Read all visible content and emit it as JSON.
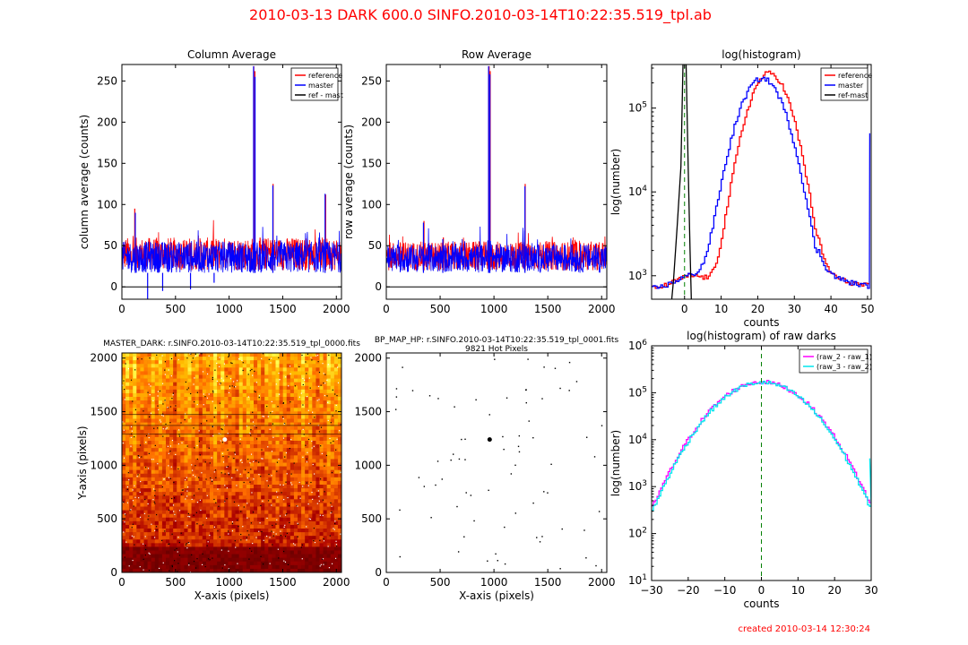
{
  "suptitle": "2010-03-13   DARK   600.0   SINFO.2010-03-14T10:22:35.519_tpl.ab",
  "footer": "created   2010-03-14    12:30:24",
  "colors": {
    "reference": "#ff0000",
    "master": "#0000ff",
    "ref_mast": "#000000",
    "magenta": "#ff00ff",
    "cyan": "#00e5ee",
    "green_dash": "#008000"
  },
  "chart_data": [
    {
      "id": "col_avg",
      "type": "line",
      "title": "Column Average",
      "xlabel": "",
      "ylabel": "column average (counts)",
      "xlim": [
        0,
        2048
      ],
      "ylim": [
        -15,
        270
      ],
      "xticks": [
        0,
        500,
        1000,
        1500,
        2000
      ],
      "yticks": [
        0,
        50,
        100,
        150,
        200,
        250
      ],
      "legend": {
        "placement": "top-right",
        "entries": [
          "reference",
          "master",
          "ref - mast"
        ]
      },
      "series": [
        {
          "name": "reference",
          "color": "#ff0000",
          "baseline": [
            20,
            60
          ],
          "spikes": [
            [
              120,
              95
            ],
            [
              1230,
              268
            ],
            [
              1240,
              262
            ],
            [
              1410,
              125
            ],
            [
              1900,
              112
            ]
          ]
        },
        {
          "name": "master",
          "color": "#0000ff",
          "baseline": [
            17,
            55
          ],
          "spikes": [
            [
              125,
              90
            ],
            [
              1228,
              268
            ],
            [
              1242,
              255
            ],
            [
              1408,
              123
            ],
            [
              1895,
              113
            ],
            [
              240,
              -15
            ],
            [
              380,
              -5
            ],
            [
              640,
              -3
            ],
            [
              860,
              5
            ]
          ]
        },
        {
          "name": "ref - mast",
          "color": "#000000",
          "value": 0
        }
      ]
    },
    {
      "id": "row_avg",
      "type": "line",
      "title": "Row Average",
      "xlabel": "",
      "ylabel": "row average (counts)",
      "xlim": [
        0,
        2048
      ],
      "ylim": [
        -15,
        270
      ],
      "xticks": [
        0,
        500,
        1000,
        1500,
        2000
      ],
      "yticks": [
        0,
        50,
        100,
        150,
        200,
        250
      ],
      "series": [
        {
          "name": "reference",
          "color": "#ff0000",
          "baseline": [
            20,
            55
          ],
          "spikes": [
            [
              955,
              268
            ],
            [
              965,
              262
            ],
            [
              1290,
              125
            ],
            [
              350,
              80
            ],
            [
              530,
              60
            ]
          ]
        },
        {
          "name": "master",
          "color": "#0000ff",
          "baseline": [
            17,
            52
          ],
          "spikes": [
            [
              950,
              268
            ],
            [
              962,
              258
            ],
            [
              1288,
              122
            ],
            [
              345,
              78
            ],
            [
              525,
              58
            ]
          ]
        },
        {
          "name": "ref - mast",
          "color": "#000000",
          "value": 0
        }
      ]
    },
    {
      "id": "log_hist",
      "type": "line",
      "title": "log(histogram)",
      "xlabel": "counts",
      "ylabel": "log(number)",
      "xlim": [
        -9,
        51
      ],
      "ylim_log10": [
        2.72,
        5.52
      ],
      "xticks": [
        0,
        10,
        20,
        30,
        40,
        50
      ],
      "ytick_labels": [
        "10^3",
        "10^4",
        "10^5"
      ],
      "legend": {
        "placement": "top-right",
        "entries": [
          "reference",
          "master",
          "ref-mast"
        ]
      },
      "series": [
        {
          "name": "reference",
          "color": "#ff0000",
          "peak_x": 23,
          "peak": 260000,
          "sigma": 4.2
        },
        {
          "name": "master",
          "color": "#0000ff",
          "peak_x": 21,
          "peak": 225000,
          "sigma": 4.6
        },
        {
          "name": "ref-mast",
          "color": "#000000",
          "points": [
            [
              -9,
              300
            ],
            [
              -4,
              300
            ],
            [
              -3,
              900
            ],
            [
              -2,
              4000
            ],
            [
              -1,
              20000
            ],
            [
              -0.3,
              600000
            ],
            [
              0.3,
              600000
            ],
            [
              1,
              20000
            ],
            [
              1.5,
              2000
            ],
            [
              2,
              300
            ],
            [
              51,
              300
            ]
          ]
        }
      ],
      "vline": 0
    },
    {
      "id": "master_dark",
      "type": "heatmap",
      "title": "MASTER_DARK: r.SINFO.2010-03-14T10:22:35.519_tpl_0000.fits",
      "xlabel": "X-axis (pixels)",
      "ylabel": "Y-axis (pixels)",
      "xlim": [
        0,
        2048
      ],
      "ylim": [
        0,
        2048
      ],
      "xticks": [
        0,
        500,
        1000,
        1500,
        2000
      ],
      "yticks": [
        0,
        500,
        1000,
        1500,
        2000
      ]
    },
    {
      "id": "bp_map",
      "type": "scatter",
      "title": "BP_MAP_HP: r.SINFO.2010-03-14T10:22:35.519_tpl_0001.fits",
      "subtitle": "9821 Hot Pixels",
      "xlabel": "X-axis (pixels)",
      "ylabel": "",
      "xlim": [
        0,
        2048
      ],
      "ylim": [
        0,
        2048
      ],
      "xticks": [
        0,
        500,
        1000,
        1500,
        2000
      ],
      "yticks": [
        0,
        500,
        1000,
        1500,
        2000
      ],
      "cluster": [
        960,
        1240
      ]
    },
    {
      "id": "raw_hist",
      "type": "line",
      "title": "log(histogram) of raw darks",
      "xlabel": "counts",
      "ylabel": "log(number)",
      "xlim": [
        -30,
        30
      ],
      "ylim_log10": [
        1,
        6
      ],
      "xticks": [
        -30,
        -20,
        -10,
        0,
        10,
        20,
        30
      ],
      "ytick_labels": [
        "10^1",
        "10^2",
        "10^3",
        "10^4",
        "10^5",
        "10^6"
      ],
      "legend": {
        "placement": "top-right",
        "entries": [
          "(raw_2 - raw_1)",
          "(raw_3 - raw_2)"
        ]
      },
      "series": [
        {
          "name": "(raw_2 - raw_1)",
          "color": "#ff00ff",
          "peak": 170000,
          "sigma": 8.5
        },
        {
          "name": "(raw_3 - raw_2)",
          "color": "#00e5ee",
          "peak": 165000,
          "sigma": 8.4
        }
      ],
      "vline": 0
    }
  ]
}
